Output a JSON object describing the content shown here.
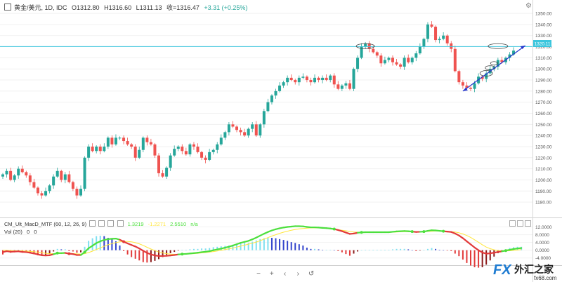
{
  "header": {
    "symbol": "黄金/美元, 1D, IDC",
    "open": "O1312.80",
    "high": "H1316.60",
    "low": "L1311.13",
    "close": "收=1316.47",
    "change": "+3.31 (+0.25%)"
  },
  "indicator": {
    "name": "CM_Ult_MacD_MTF (60, 12, 26, 9)",
    "v1": "1.3219",
    "v2": "-1.2271",
    "v3": "2.5510",
    "v4": "n/a",
    "vol_label": "Vol (20)",
    "vol_v1": "0",
    "vol_v2": "0"
  },
  "price_tag": "1320.11",
  "watermark": {
    "fx": "FX",
    "cn": "外汇之家",
    "url": "fx68.com"
  },
  "zoom": {
    "minus": "−",
    "plus": "+",
    "prev": "‹",
    "next": "›",
    "reset": "↺"
  },
  "colors": {
    "up": "#26a69a",
    "down": "#ef5350",
    "hline": "#3cc6dd",
    "trend": "#2233cc",
    "macd_up": "#4cdf3d",
    "macd_down": "#e23a3a",
    "signal": "#ffe63b",
    "hist_pos_rise": "#7fe0f0",
    "hist_pos_fall": "#3344cc",
    "hist_neg_fall": "#e23a3a",
    "hist_neg_rise": "#8b1a1a"
  },
  "chart_data": [
    {
      "type": "candlestick",
      "title": "黄金/美元, 1D, IDC",
      "ylim": [
        1175,
        1357
      ],
      "yticks": [
        1180.0,
        1190.0,
        1200.0,
        1210.0,
        1220.0,
        1230.0,
        1240.0,
        1250.0,
        1260.0,
        1270.0,
        1280.0,
        1290.0,
        1300.0,
        1310.0,
        1320.0,
        1330.0,
        1340.0,
        1350.0
      ],
      "horizontal_line": 1320.11,
      "close": [
        1205,
        1208,
        1200,
        1204,
        1210,
        1207,
        1204,
        1198,
        1193,
        1188,
        1186,
        1190,
        1195,
        1203,
        1208,
        1200,
        1205,
        1198,
        1192,
        1186,
        1192,
        1220,
        1230,
        1226,
        1230,
        1226,
        1230,
        1238,
        1232,
        1238,
        1238,
        1235,
        1232,
        1230,
        1220,
        1227,
        1238,
        1234,
        1232,
        1222,
        1206,
        1203,
        1211,
        1222,
        1228,
        1230,
        1226,
        1223,
        1232,
        1230,
        1225,
        1220,
        1218,
        1225,
        1227,
        1232,
        1238,
        1243,
        1250,
        1248,
        1245,
        1243,
        1240,
        1246,
        1250,
        1240,
        1250,
        1262,
        1270,
        1276,
        1280,
        1285,
        1288,
        1292,
        1290,
        1288,
        1292,
        1293,
        1290,
        1288,
        1292,
        1290,
        1292,
        1290,
        1294,
        1286,
        1282,
        1285,
        1287,
        1282,
        1300,
        1310,
        1320,
        1323,
        1318,
        1315,
        1312,
        1305,
        1308,
        1310,
        1306,
        1304,
        1302,
        1310,
        1306,
        1310,
        1314,
        1320,
        1327,
        1340,
        1338,
        1326,
        1327,
        1330,
        1323,
        1318,
        1298,
        1288,
        1285,
        1283,
        1282,
        1287,
        1293,
        1291,
        1296,
        1300,
        1302,
        1308,
        1306,
        1310,
        1313,
        1316.47
      ],
      "x": "daily bars (no date labels visible)"
    },
    {
      "type": "line",
      "title": "CM_Ult_MacD_MTF (60, 12, 26, 9)",
      "ylim": [
        -7,
        14
      ],
      "yticks": [
        -4.0,
        0.0,
        4.0,
        8.0,
        12.0
      ],
      "series": [
        {
          "name": "MACD",
          "values": [
            -1,
            -0.5,
            -0.8,
            -0.7,
            -0.6,
            -0.9,
            -1.0,
            -1.3,
            -1.7,
            -2.2,
            -2.6,
            -2.7,
            -2.6,
            -2.1,
            -1.5,
            -1.5,
            -1.4,
            -1.8,
            -2.0,
            -2.5,
            -2.5,
            -1.0,
            1.0,
            2.3,
            3.7,
            4.6,
            5.3,
            5.7,
            5.9,
            6.0,
            5.4,
            4.4,
            3.5,
            2.7,
            1.9,
            0.9,
            -0.3,
            -1.4,
            -2.2,
            -2.7,
            -3.0,
            -3.0,
            -2.9,
            -2.7,
            -2.5,
            -2.2,
            -2.0,
            -1.9,
            -1.7,
            -1.5,
            -1.3,
            -1.0,
            -0.8,
            -0.5,
            0.0,
            0.4,
            0.8,
            1.3,
            1.8,
            2.4,
            3.1,
            3.8,
            4.3,
            4.8,
            5.6,
            6.5,
            7.5,
            8.5,
            9.4,
            10.2,
            10.8,
            11.3,
            11.7,
            12.0,
            12.2,
            12.4,
            12.4,
            12.3,
            12.0,
            11.8,
            11.8,
            11.7,
            11.5,
            11.4,
            11.2,
            10.9,
            10.4,
            9.8,
            9.1,
            8.4,
            8.6,
            9.0,
            9.2,
            9.3,
            9.3,
            9.3,
            9.3,
            9.3,
            9.3,
            9.3,
            9.5,
            9.7,
            9.8,
            9.9,
            9.8,
            9.6,
            9.4,
            9.5,
            9.6,
            10.0,
            10.3,
            10.2,
            10.0,
            9.8,
            9.6,
            9.4,
            8.6,
            7.6,
            6.2,
            4.6,
            3.0,
            1.4,
            0.0,
            -1.2,
            -1.8,
            -1.6,
            -1.3,
            -0.9,
            -0.6,
            -0.2,
            0.2,
            0.6,
            0.9,
            1.1
          ]
        },
        {
          "name": "Signal",
          "values": [
            0.0,
            -0.1,
            -0.2,
            -0.3,
            -0.3,
            -0.4,
            -0.5,
            -0.6,
            -0.8,
            -1.0,
            -1.3,
            -1.6,
            -1.8,
            -1.8,
            -1.8,
            -1.7,
            -1.6,
            -1.6,
            -1.7,
            -1.9,
            -2.0,
            -1.8,
            -1.2,
            -0.5,
            0.4,
            1.2,
            2.0,
            2.8,
            3.4,
            3.9,
            4.3,
            4.6,
            4.5,
            4.3,
            3.9,
            3.3,
            2.5,
            1.5,
            0.6,
            -0.2,
            -0.9,
            -1.4,
            -1.8,
            -2.0,
            -2.1,
            -2.1,
            -2.1,
            -2.0,
            -1.9,
            -1.8,
            -1.6,
            -1.4,
            -1.2,
            -1.0,
            -0.7,
            -0.4,
            -0.1,
            0.3,
            0.7,
            1.1,
            1.6,
            2.1,
            2.6,
            3.1,
            3.6,
            4.2,
            4.9,
            5.7,
            6.5,
            7.3,
            8.0,
            8.7,
            9.3,
            9.8,
            10.3,
            10.7,
            11.0,
            11.2,
            11.4,
            11.5,
            11.5,
            11.5,
            11.4,
            11.3,
            11.1,
            10.9,
            10.6,
            10.3,
            10.0,
            9.7,
            9.4,
            9.3,
            9.2,
            9.2,
            9.2,
            9.2,
            9.2,
            9.2,
            9.2,
            9.2,
            9.3,
            9.4,
            9.5,
            9.6,
            9.6,
            9.6,
            9.6,
            9.6,
            9.6,
            9.7,
            9.8,
            9.9,
            9.9,
            9.8,
            9.7,
            9.6,
            9.4,
            9.0,
            8.4,
            7.6,
            6.6,
            5.4,
            4.1,
            2.8,
            1.6,
            0.8,
            0.2,
            -0.2,
            -0.4,
            -0.4,
            -0.3,
            -0.1,
            0.1,
            0.3
          ]
        }
      ]
    }
  ]
}
